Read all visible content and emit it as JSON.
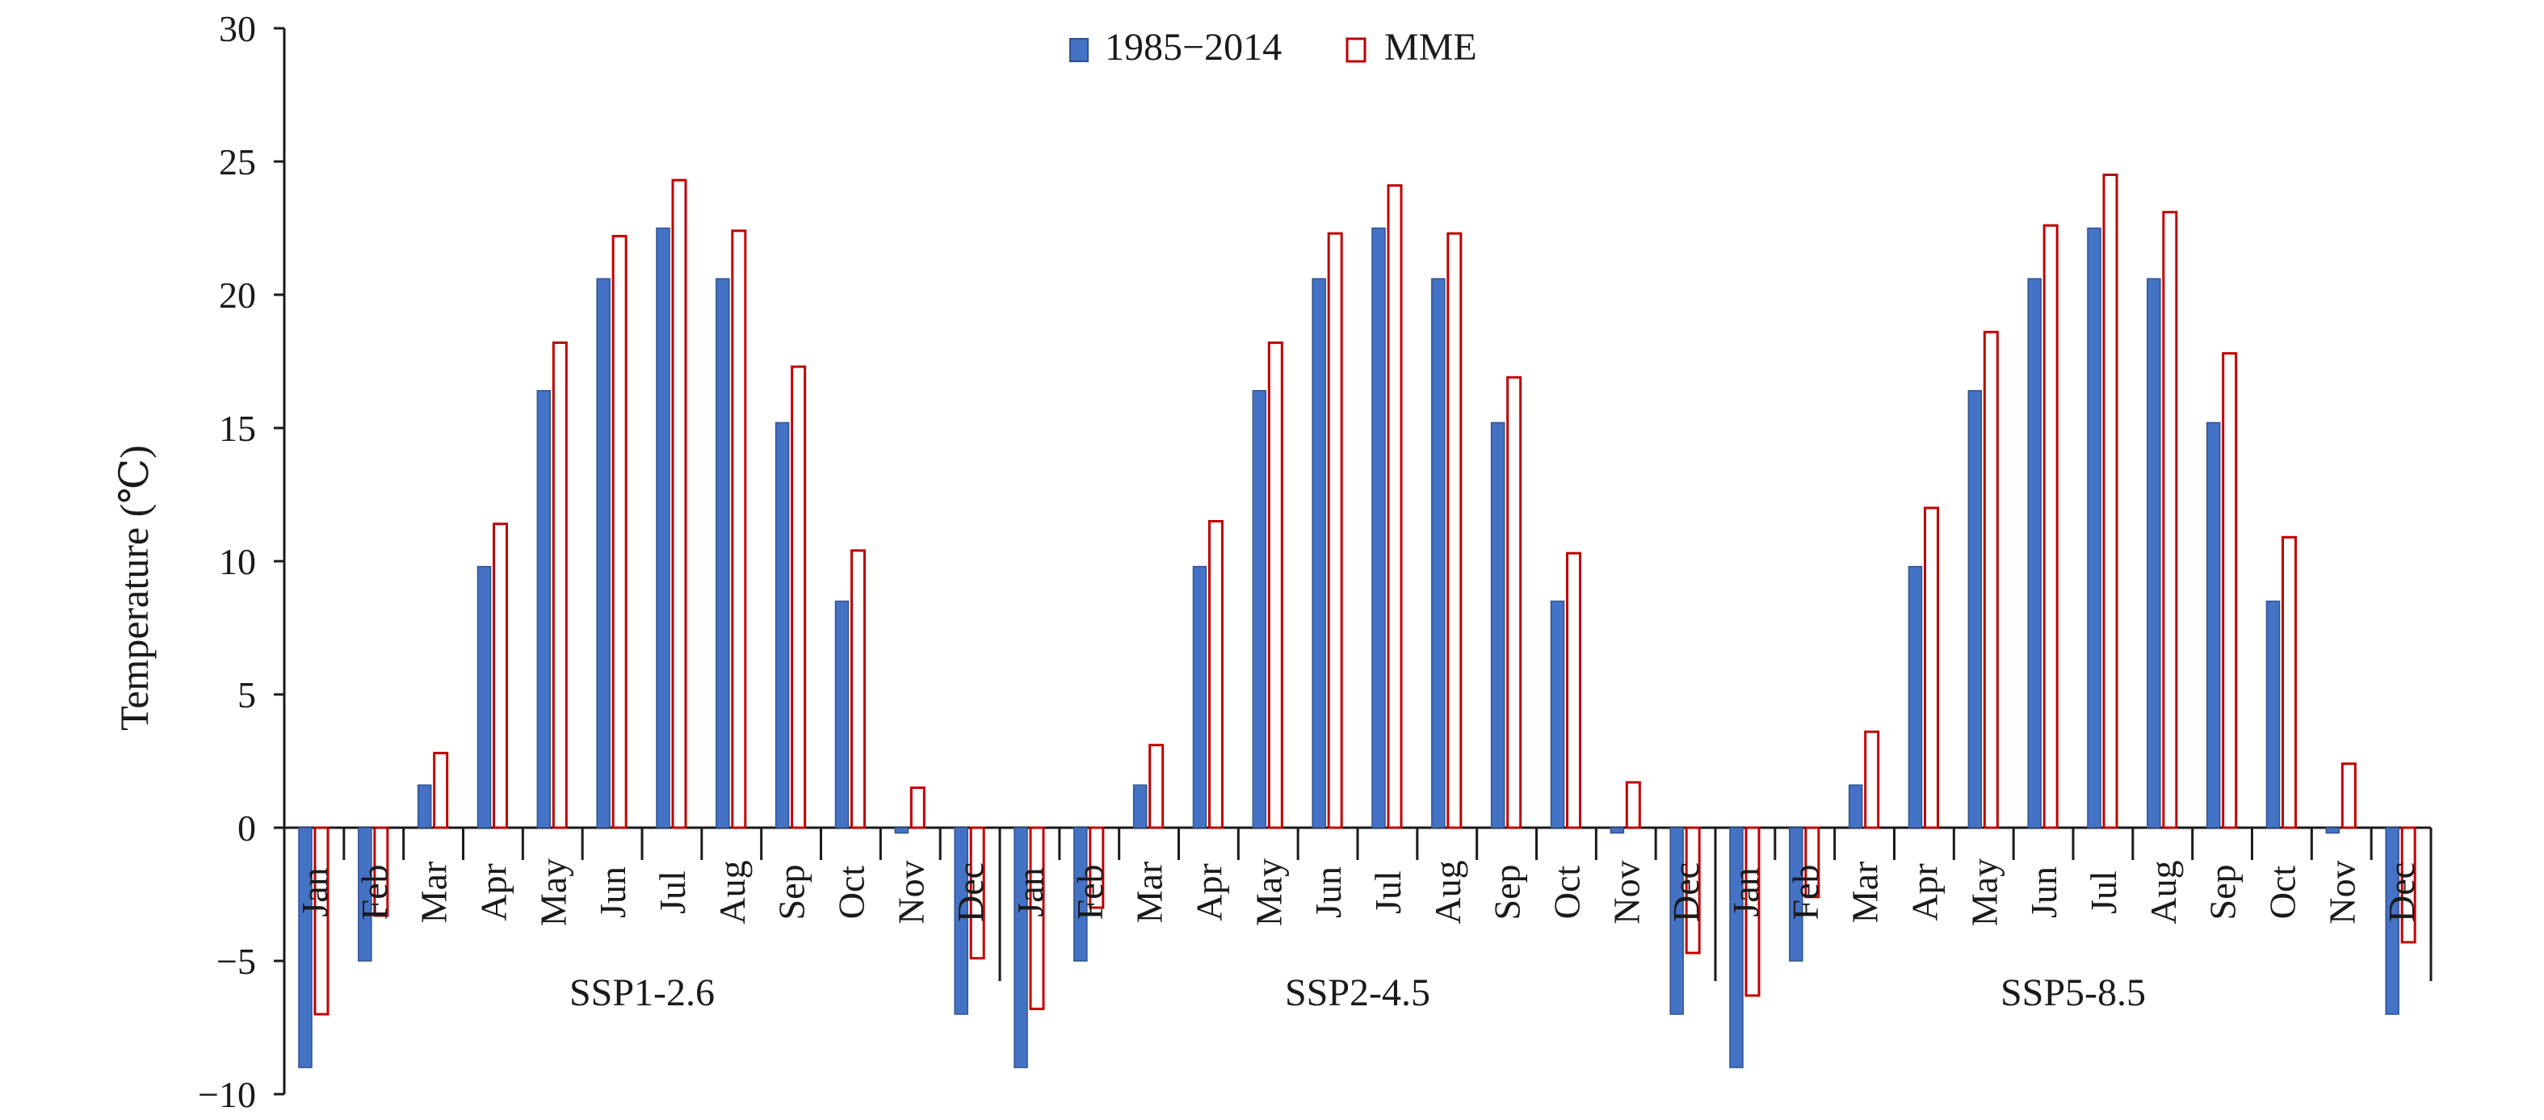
{
  "chart_data": {
    "type": "bar",
    "ylabel": "Temperature (℃)",
    "ylim": [
      -10,
      30
    ],
    "yticks": [
      30,
      25,
      20,
      15,
      10,
      5,
      0,
      -5,
      -10
    ],
    "ytick_labels": [
      "30",
      "25",
      "20",
      "15",
      "10",
      "5",
      "0",
      "−5",
      "−10"
    ],
    "grid": false,
    "legend_position": "top-center",
    "months": [
      "Jan",
      "Feb",
      "Mar",
      "Apr",
      "May",
      "Jun",
      "Jul",
      "Aug",
      "Sep",
      "Oct",
      "Nov",
      "Dec"
    ],
    "series_names": [
      "1985−2014",
      "MME"
    ],
    "colors": {
      "baseline": "#4472c4",
      "baseline_edge": "#2f528f",
      "mme_fill": "#ffffff",
      "mme_edge": "#c00000"
    },
    "groups": [
      {
        "scenario": "SSP1-2.6",
        "series": [
          {
            "name": "1985−2014",
            "values": [
              -9.0,
              -5.0,
              1.6,
              9.8,
              16.4,
              20.6,
              22.5,
              20.6,
              15.2,
              8.5,
              -0.2,
              -7.0
            ]
          },
          {
            "name": "MME",
            "values": [
              -7.0,
              -3.3,
              2.8,
              11.4,
              18.2,
              22.2,
              24.3,
              22.4,
              17.3,
              10.4,
              1.5,
              -4.9
            ]
          }
        ]
      },
      {
        "scenario": "SSP2-4.5",
        "series": [
          {
            "name": "1985−2014",
            "values": [
              -9.0,
              -5.0,
              1.6,
              9.8,
              16.4,
              20.6,
              22.5,
              20.6,
              15.2,
              8.5,
              -0.2,
              -7.0
            ]
          },
          {
            "name": "MME",
            "values": [
              -6.8,
              -3.0,
              3.1,
              11.5,
              18.2,
              22.3,
              24.1,
              22.3,
              16.9,
              10.3,
              1.7,
              -4.7
            ]
          }
        ]
      },
      {
        "scenario": "SSP5-8.5",
        "series": [
          {
            "name": "1985−2014",
            "values": [
              -9.0,
              -5.0,
              1.6,
              9.8,
              16.4,
              20.6,
              22.5,
              20.6,
              15.2,
              8.5,
              -0.2,
              -7.0
            ]
          },
          {
            "name": "MME",
            "values": [
              -6.3,
              -2.6,
              3.6,
              12.0,
              18.6,
              22.6,
              24.5,
              23.1,
              17.8,
              10.9,
              2.4,
              -4.3
            ]
          }
        ]
      }
    ]
  }
}
